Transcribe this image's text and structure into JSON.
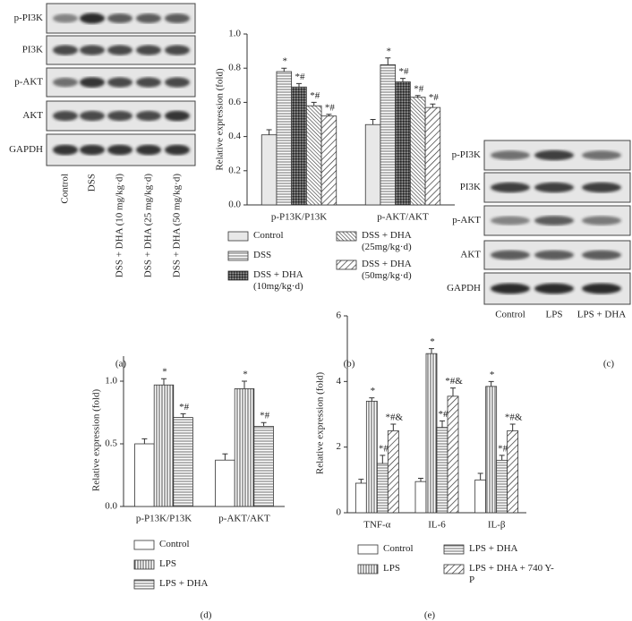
{
  "blots": [
    {
      "panel": "(a)",
      "rows": [
        "p-PI3K",
        "PI3K",
        "p-AKT",
        "AKT",
        "GAPDH"
      ],
      "lanes": [
        "Control",
        "DSS",
        "DSS + DHA (10 mg/kg·d)",
        "DSS + DHA (25 mg/kg·d)",
        "DSS + DHA (50 mg/kg·d)"
      ]
    },
    {
      "panel": "(c)",
      "rows": [
        "p-PI3K",
        "PI3K",
        "p-AKT",
        "AKT",
        "GAPDH"
      ],
      "lanes": [
        "Control",
        "LPS",
        "LPS + DHA"
      ]
    }
  ],
  "chart_data": [
    {
      "type": "bar",
      "panel": "(b)",
      "ylabel": "Relative expression (fold)",
      "categories": [
        "p-P13K/P13K",
        "p-AKT/AKT"
      ],
      "ylim": [
        0,
        1.0
      ],
      "yticks": [
        {
          "value": 0,
          "label": "0.0"
        },
        0.2,
        0.4,
        0.6,
        0.8,
        {
          "value": 1.0,
          "label": "1.0"
        }
      ],
      "series": [
        {
          "name": "Control",
          "pattern": "light",
          "values": [
            0.41,
            0.47
          ],
          "errors": [
            0.03,
            0.03
          ]
        },
        {
          "name": "DSS",
          "pattern": "hlines",
          "values": [
            0.78,
            0.82
          ],
          "errors": [
            0.02,
            0.04
          ],
          "significance": [
            "*",
            "*"
          ]
        },
        {
          "name": "DSS + DHA (10mg/kg·d)",
          "pattern": "cross",
          "values": [
            0.69,
            0.72
          ],
          "errors": [
            0.02,
            0.02
          ],
          "significance": [
            "*#",
            "*#"
          ]
        },
        {
          "name": "DSS + DHA (25mg/kg·d)",
          "pattern": "dense",
          "values": [
            0.58,
            0.63
          ],
          "errors": [
            0.02,
            0.01
          ],
          "significance": [
            "*#",
            "*#"
          ]
        },
        {
          "name": "DSS + DHA (50mg/kg·d)",
          "pattern": "diag",
          "values": [
            0.52,
            0.57
          ],
          "errors": [
            0.01,
            0.02
          ],
          "significance": [
            "*#",
            "*#"
          ]
        }
      ]
    },
    {
      "type": "bar",
      "panel": "(d)",
      "ylabel": "Relative expression (fold)",
      "categories": [
        "p-P13K/P13K",
        "p-AKT/AKT"
      ],
      "ylim": [
        0,
        1.2
      ],
      "yticks": [
        {
          "value": 0,
          "label": "0.0"
        },
        0.5,
        {
          "value": 1.0,
          "label": "1.0"
        }
      ],
      "series": [
        {
          "name": "Control",
          "pattern": "white",
          "values": [
            0.5,
            0.37
          ],
          "errors": [
            0.04,
            0.05
          ]
        },
        {
          "name": "LPS",
          "pattern": "vlines",
          "values": [
            0.97,
            0.94
          ],
          "errors": [
            0.05,
            0.06
          ],
          "significance": [
            "*",
            "*"
          ]
        },
        {
          "name": "LPS + DHA",
          "pattern": "hlines",
          "values": [
            0.71,
            0.64
          ],
          "errors": [
            0.03,
            0.03
          ],
          "significance": [
            "*#",
            "*#"
          ]
        }
      ]
    },
    {
      "type": "bar",
      "panel": "(e)",
      "ylabel": "Relative expression (fold)",
      "categories": [
        "TNF-α",
        "IL-6",
        "IL-β"
      ],
      "ylim": [
        0,
        6
      ],
      "yticks": [
        0,
        2,
        4,
        6
      ],
      "series": [
        {
          "name": "Control",
          "pattern": "white",
          "values": [
            0.9,
            0.95,
            1.0
          ],
          "errors": [
            0.12,
            0.1,
            0.2
          ]
        },
        {
          "name": "LPS",
          "pattern": "vlines",
          "values": [
            3.4,
            4.85,
            3.85
          ],
          "errors": [
            0.1,
            0.15,
            0.15
          ],
          "significance": [
            "*",
            "*",
            "*"
          ]
        },
        {
          "name": "LPS + DHA",
          "pattern": "hlines",
          "values": [
            1.5,
            2.6,
            1.6
          ],
          "errors": [
            0.25,
            0.2,
            0.15
          ],
          "significance": [
            "*#",
            "*#",
            "*#"
          ]
        },
        {
          "name": "LPS + DHA + 740 Y-P",
          "pattern": "diag",
          "values": [
            2.5,
            3.55,
            2.5
          ],
          "errors": [
            0.2,
            0.25,
            0.2
          ],
          "significance": [
            "*#&",
            "*#&",
            "*#&"
          ]
        }
      ]
    }
  ]
}
